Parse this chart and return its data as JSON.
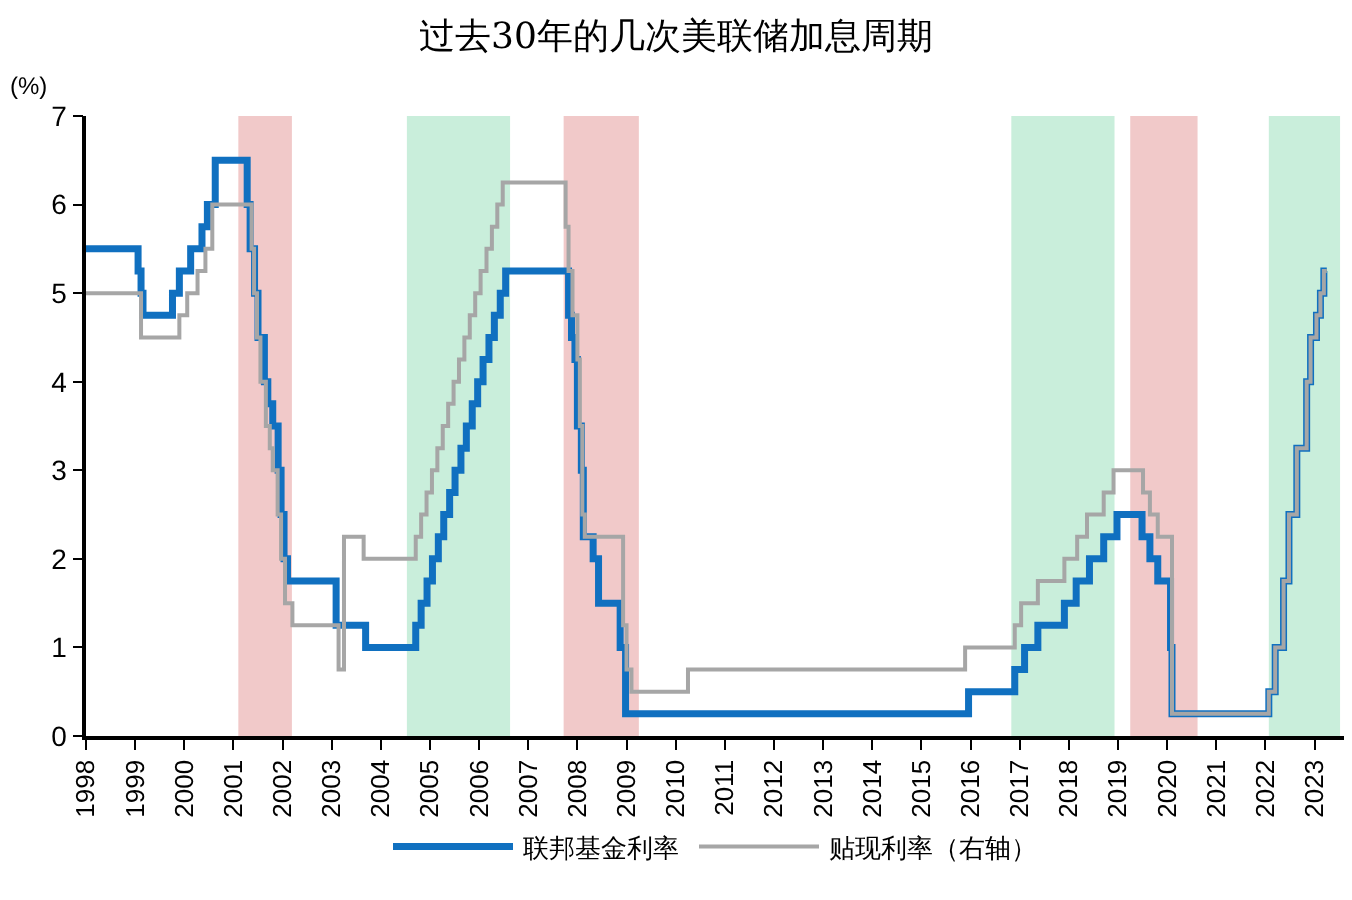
{
  "chart_data": {
    "type": "step",
    "title": "过去30年的几次美联储加息周期",
    "ylabel": "(%)",
    "xlim": [
      1998,
      2023.6
    ],
    "xticks": [
      1998,
      1999,
      2000,
      2001,
      2002,
      2003,
      2004,
      2005,
      2006,
      2007,
      2008,
      2009,
      2010,
      2011,
      2012,
      2013,
      2014,
      2015,
      2016,
      2017,
      2018,
      2019,
      2020,
      2021,
      2022,
      2023
    ],
    "ylim": [
      0,
      7
    ],
    "yticks": [
      0,
      1,
      2,
      3,
      4,
      5,
      6,
      7
    ],
    "grid": false,
    "legend": "bottom",
    "marker": "none",
    "series": [
      {
        "name": "联邦基金利率",
        "color": "#1070c0",
        "x": [
          1998,
          1999.06,
          1999.12,
          1999.16,
          1999.22,
          1999.76,
          1999.9,
          2000.13,
          2000.36,
          2000.47,
          2000.63,
          2001.28,
          2001.34,
          2001.43,
          2001.5,
          2001.63,
          2001.7,
          2001.8,
          2001.91,
          2001.97,
          2002.03,
          2002.1,
          2002.18,
          2003.09,
          2003.69,
          2004.71,
          2004.82,
          2004.94,
          2005.05,
          2005.17,
          2005.28,
          2005.4,
          2005.51,
          2005.63,
          2005.74,
          2005.86,
          2005.97,
          2006.08,
          2006.2,
          2006.31,
          2006.43,
          2006.54,
          2006.64,
          2007.82,
          2007.88,
          2007.95,
          2008.0,
          2008.08,
          2008.12,
          2008.32,
          2008.43,
          2008.87,
          2008.98,
          2009.1,
          2015.96,
          2016.9,
          2017.1,
          2017.37,
          2017.91,
          2018.15,
          2018.42,
          2018.71,
          2018.98,
          2019.49,
          2019.65,
          2019.81,
          2020.07,
          2020.1,
          2022.07,
          2022.2,
          2022.37,
          2022.48,
          2022.64,
          2022.84,
          2022.92,
          2023.04,
          2023.12,
          2023.19,
          2023.25
        ],
        "values": [
          5.5,
          5.25,
          5.0,
          4.75,
          4.75,
          5.0,
          5.25,
          5.5,
          5.75,
          6.0,
          6.5,
          6.0,
          5.5,
          5.0,
          4.5,
          4.0,
          3.75,
          3.5,
          3.0,
          2.5,
          2.0,
          1.75,
          1.75,
          1.25,
          1.0,
          1.25,
          1.5,
          1.75,
          2.0,
          2.25,
          2.5,
          2.75,
          3.0,
          3.25,
          3.5,
          3.75,
          4.0,
          4.25,
          4.5,
          4.75,
          5.0,
          5.25,
          5.25,
          4.75,
          4.5,
          4.25,
          3.5,
          3.0,
          2.25,
          2.0,
          1.5,
          1.0,
          0.25,
          0.25,
          0.5,
          0.75,
          1.0,
          1.25,
          1.5,
          1.75,
          2.0,
          2.25,
          2.5,
          2.25,
          2.0,
          1.75,
          1.0,
          0.25,
          0.5,
          1.0,
          1.75,
          2.5,
          3.25,
          4.0,
          4.5,
          4.75,
          5.0,
          5.25,
          5.25
        ]
      },
      {
        "name": "贴现利率（右轴）",
        "color": "#a6a6a6",
        "x": [
          1998,
          1999.12,
          1999.9,
          2000.06,
          2000.27,
          2000.43,
          2000.57,
          2001.37,
          2001.42,
          2001.48,
          2001.55,
          2001.66,
          2001.74,
          2001.8,
          2001.9,
          2001.97,
          2002.05,
          2002.2,
          2003.14,
          2003.25,
          2003.65,
          2004.71,
          2004.82,
          2004.93,
          2005.04,
          2005.15,
          2005.26,
          2005.37,
          2005.48,
          2005.59,
          2005.7,
          2005.81,
          2005.92,
          2006.03,
          2006.15,
          2006.26,
          2006.37,
          2006.48,
          2006.59,
          2007.76,
          2007.82,
          2007.9,
          2008.0,
          2008.05,
          2008.1,
          2008.15,
          2008.36,
          2008.93,
          2009.0,
          2009.1,
          2010.25,
          2015.89,
          2016.9,
          2017.03,
          2017.37,
          2017.91,
          2018.17,
          2018.37,
          2018.71,
          2018.91,
          2018.98,
          2019.51,
          2019.65,
          2019.81,
          2020.1,
          2022.07,
          2022.2,
          2022.37,
          2022.48,
          2022.64,
          2022.84,
          2022.92,
          2023.04,
          2023.12,
          2023.19,
          2023.25
        ],
        "values": [
          5.0,
          4.5,
          4.75,
          5.0,
          5.25,
          5.5,
          6.0,
          5.5,
          5.0,
          4.5,
          4.0,
          3.5,
          3.25,
          3.0,
          2.5,
          2.0,
          1.5,
          1.25,
          0.75,
          2.25,
          2.0,
          2.25,
          2.5,
          2.75,
          3.0,
          3.25,
          3.5,
          3.75,
          4.0,
          4.25,
          4.5,
          4.75,
          5.0,
          5.25,
          5.5,
          5.75,
          6.0,
          6.25,
          6.25,
          5.75,
          5.25,
          4.75,
          4.25,
          3.5,
          2.5,
          2.25,
          2.25,
          1.25,
          0.75,
          0.5,
          0.75,
          1.0,
          1.25,
          1.5,
          1.75,
          2.0,
          2.25,
          2.5,
          2.75,
          3.0,
          3.0,
          2.75,
          2.5,
          2.25,
          0.25,
          0.5,
          1.0,
          1.75,
          2.5,
          3.25,
          4.0,
          4.5,
          4.75,
          5.0,
          5.25,
          5.25
        ]
      }
    ],
    "bands": [
      {
        "axis": "x",
        "from": 2001.1,
        "to": 2002.19,
        "color": "#f1c9c9"
      },
      {
        "axis": "x",
        "from": 2004.53,
        "to": 2006.63,
        "color": "#c9eedb"
      },
      {
        "axis": "x",
        "from": 2007.72,
        "to": 2009.25,
        "color": "#f1c9c9"
      },
      {
        "axis": "x",
        "from": 2016.83,
        "to": 2018.93,
        "color": "#c9eedb"
      },
      {
        "axis": "x",
        "from": 2019.25,
        "to": 2020.62,
        "color": "#f1c9c9"
      },
      {
        "axis": "x",
        "from": 2022.07,
        "to": 2023.52,
        "color": "#c9eedb"
      }
    ]
  }
}
